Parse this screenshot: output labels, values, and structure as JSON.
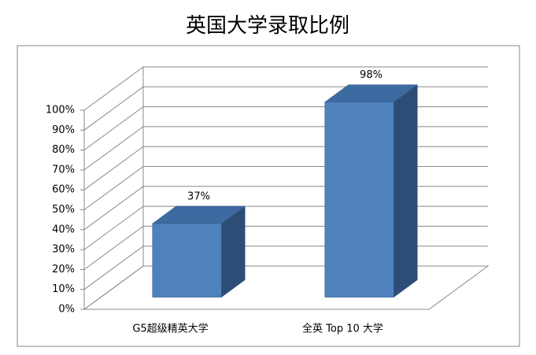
{
  "chart_data": {
    "type": "bar3d",
    "title": "英国大学录取比例",
    "categories": [
      "G5超级精英大学",
      "全英 Top 10 大学"
    ],
    "values": [
      37,
      98
    ],
    "value_labels": [
      "37%",
      "98%"
    ],
    "color": "#4f81bd",
    "ylim": [
      0,
      100
    ],
    "yticks": [
      {
        "value": 0,
        "label": "0%"
      },
      {
        "value": 10,
        "label": "10%"
      },
      {
        "value": 20,
        "label": "20%"
      },
      {
        "value": 30,
        "label": "30%"
      },
      {
        "value": 40,
        "label": "40%"
      },
      {
        "value": 50,
        "label": "50%"
      },
      {
        "value": 60,
        "label": "60%"
      },
      {
        "value": 70,
        "label": "70%"
      },
      {
        "value": 80,
        "label": "80%"
      },
      {
        "value": 90,
        "label": "90%"
      },
      {
        "value": 100,
        "label": "100%"
      }
    ],
    "grid": true
  }
}
